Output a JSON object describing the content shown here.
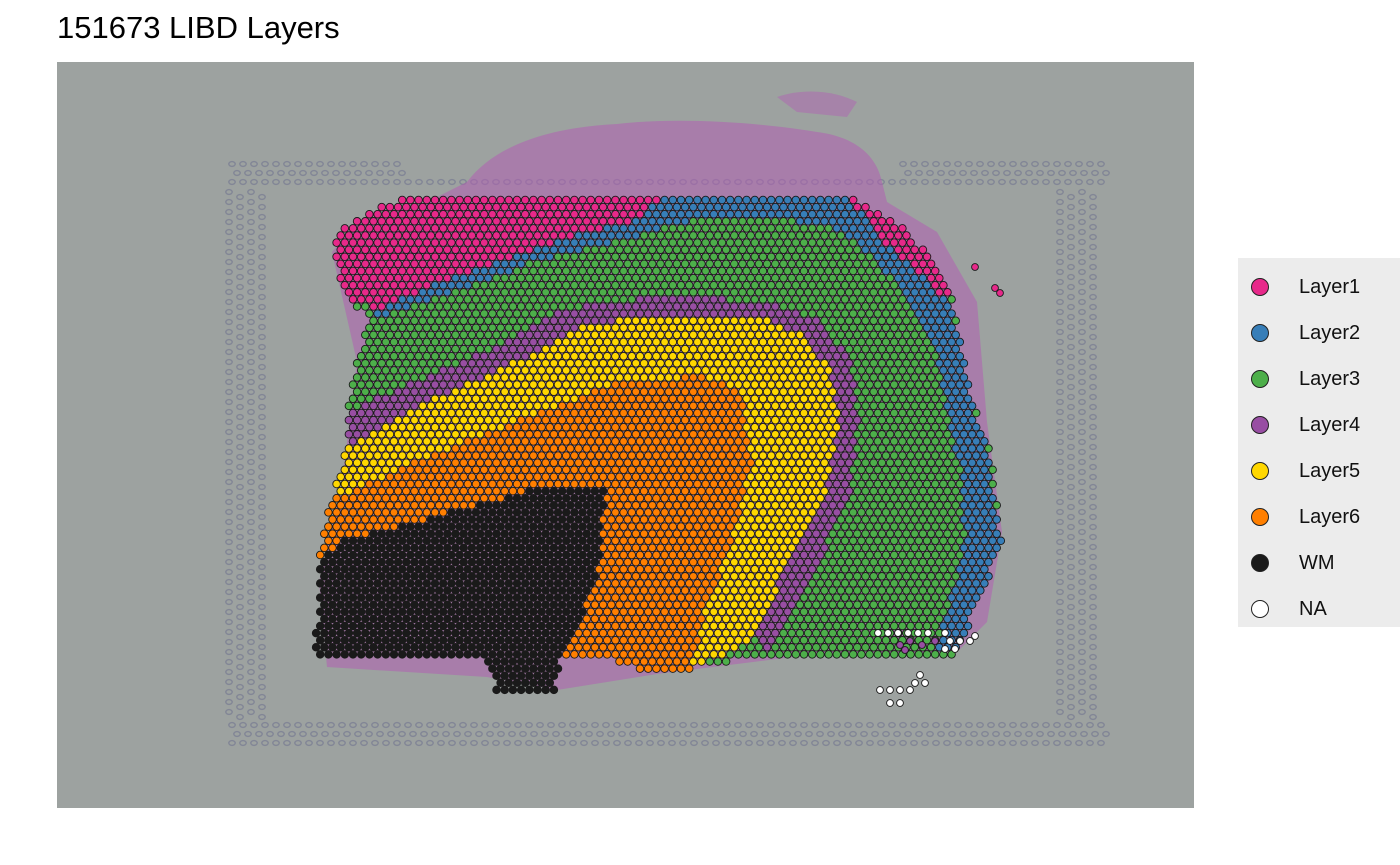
{
  "chart_data": {
    "type": "scatter",
    "title": "151673 LIBD Layers",
    "xlabel": "",
    "ylabel": "",
    "legend_position": "right",
    "background": "tissue image (H&E stained cortical section)",
    "grid": false,
    "series": [
      {
        "name": "Layer1",
        "color": "#e7298a"
      },
      {
        "name": "Layer2",
        "color": "#377eb8"
      },
      {
        "name": "Layer3",
        "color": "#4daf4a"
      },
      {
        "name": "Layer4",
        "color": "#984ea3"
      },
      {
        "name": "Layer5",
        "color": "#ffd700"
      },
      {
        "name": "Layer6",
        "color": "#ff7f00"
      },
      {
        "name": "WM",
        "color": "#1a1a1a"
      },
      {
        "name": "NA",
        "color": "#ffffff"
      }
    ]
  },
  "colors": {
    "panel_background": "#9da2a0",
    "tissue": "#b15eb3",
    "fiducial": "#7c7f93"
  }
}
